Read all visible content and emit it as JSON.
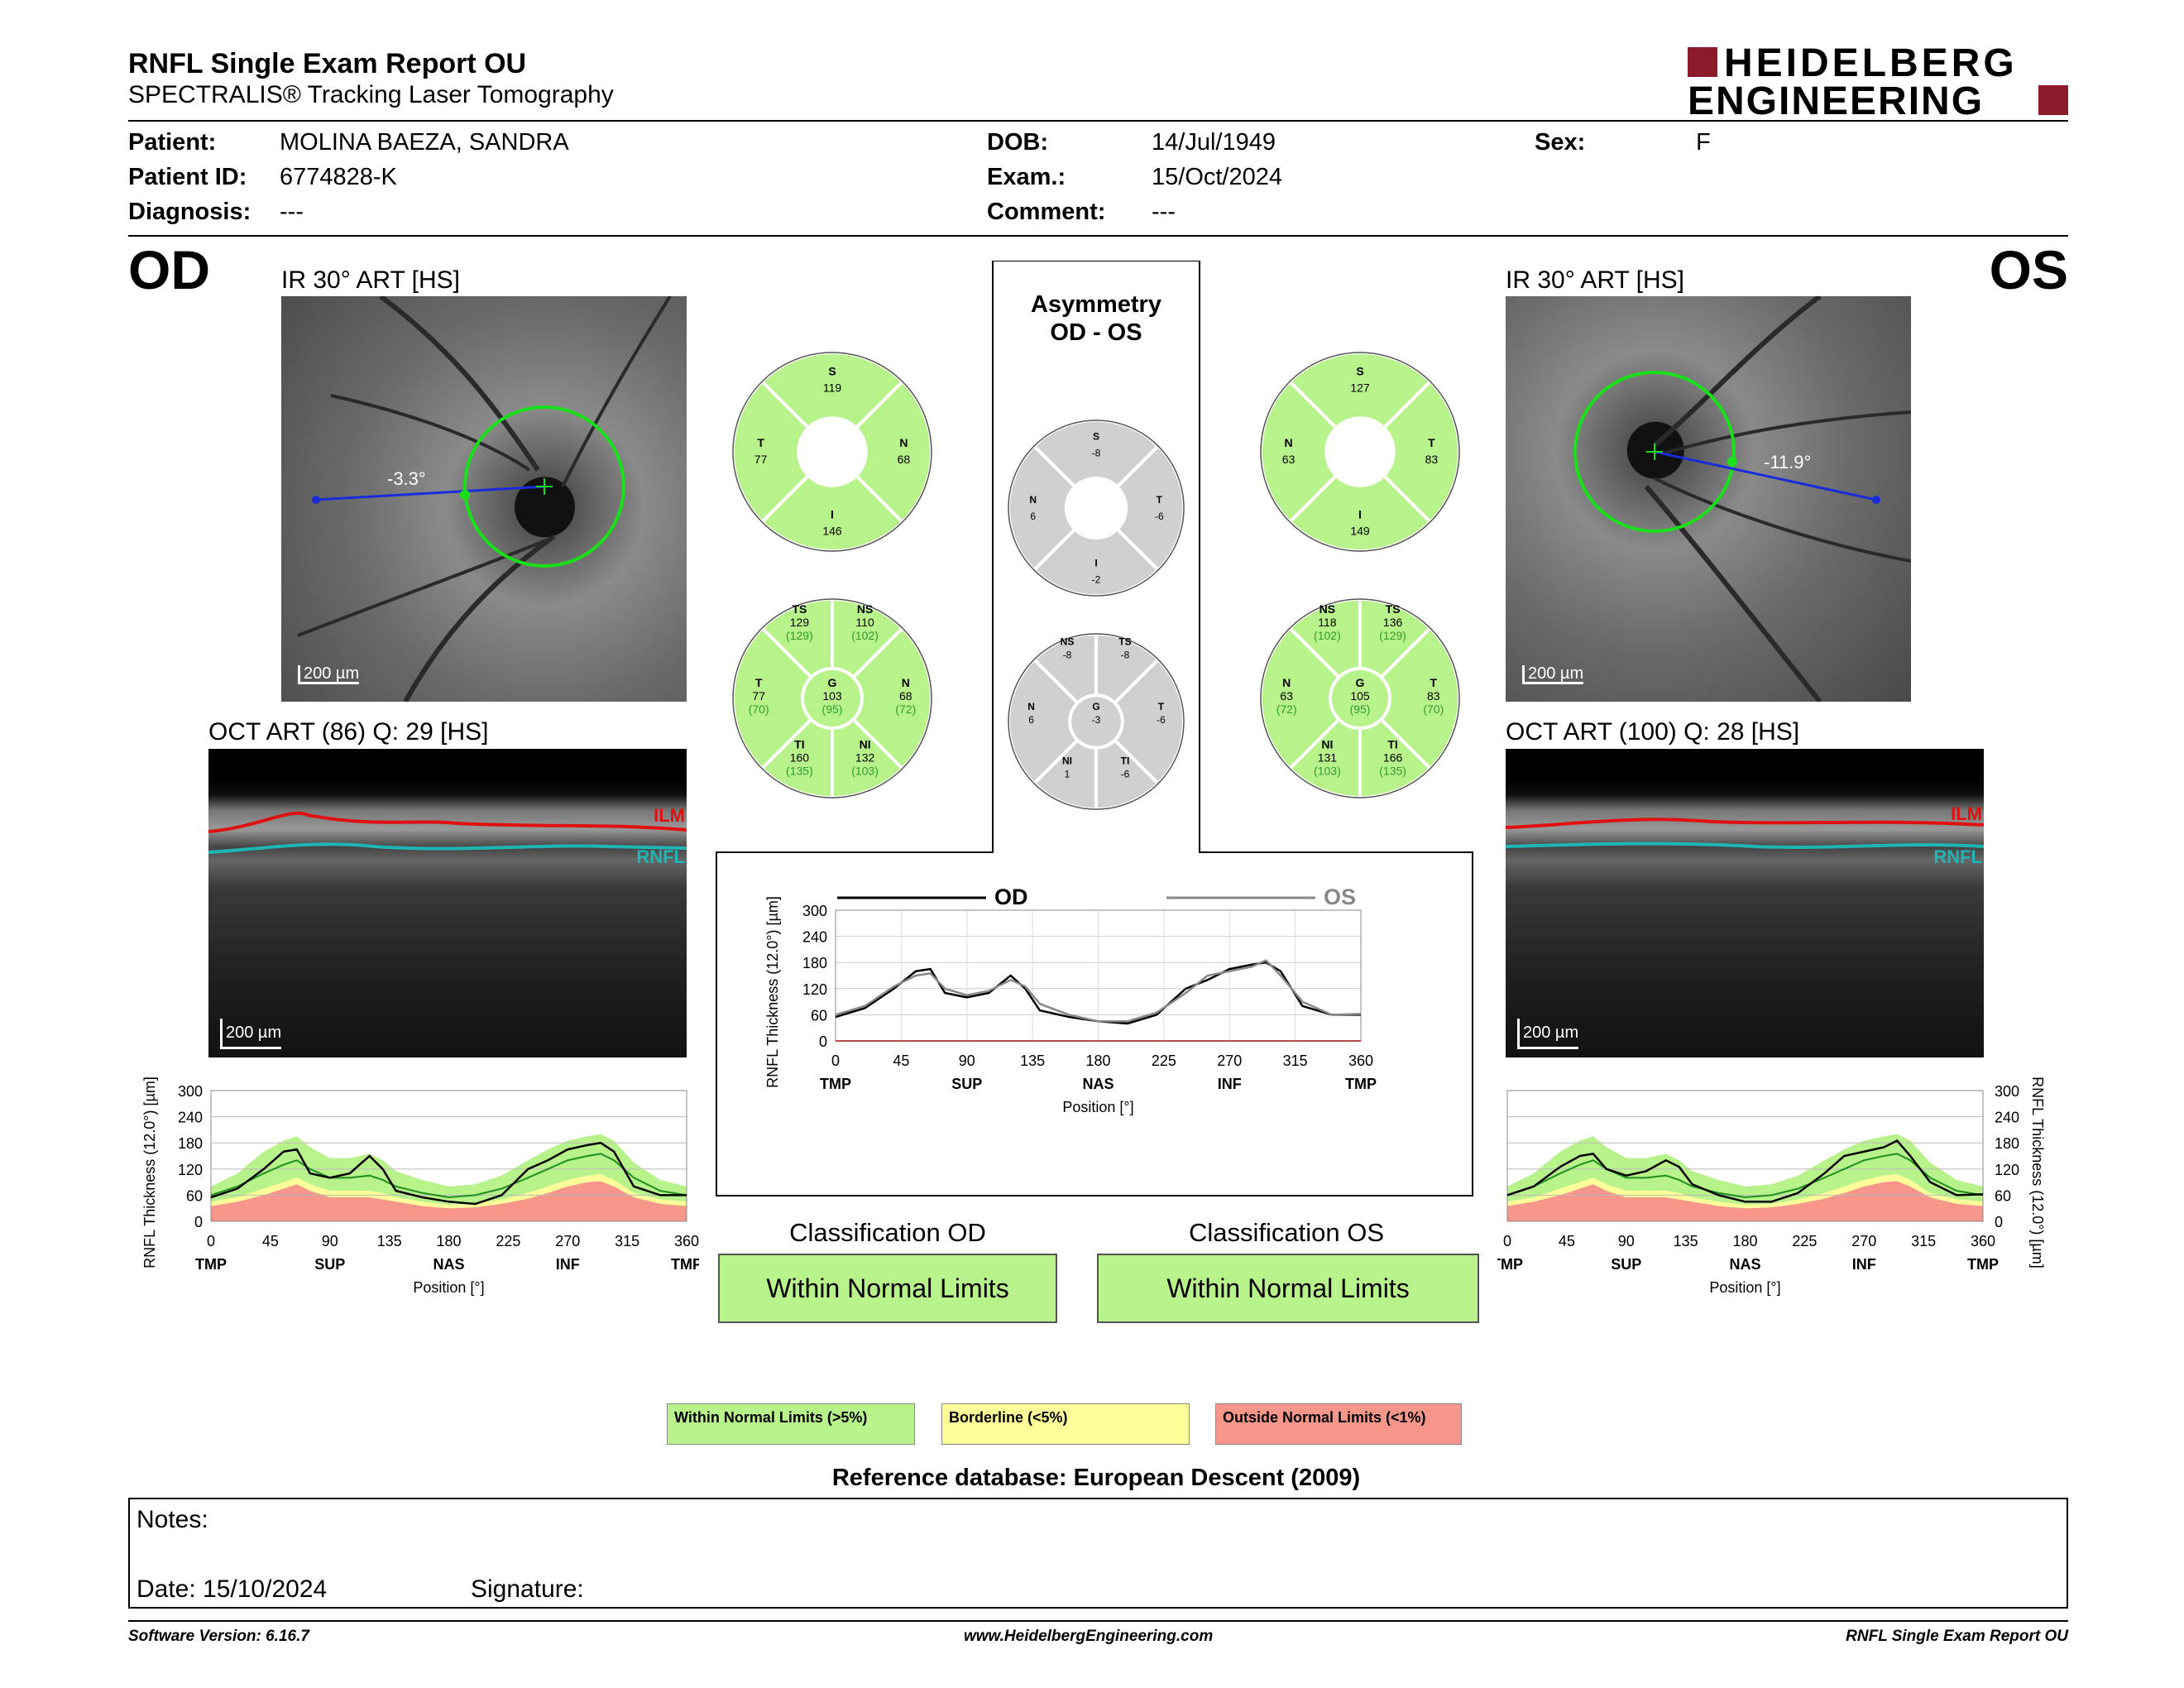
{
  "header": {
    "title": "RNFL Single Exam Report OU",
    "subtitle": "SPECTRALIS® Tracking Laser Tomography",
    "logo_line1": "HEIDELBERG",
    "logo_line2": "ENGINEERING",
    "brand_color": "#8b1a2b"
  },
  "patient": {
    "name_label": "Patient:",
    "name": "MOLINA BAEZA, SANDRA",
    "id_label": "Patient ID:",
    "id": "6774828-K",
    "diagnosis_label": "Diagnosis:",
    "diagnosis": "---",
    "dob_label": "DOB:",
    "dob": "14/Jul/1949",
    "exam_label": "Exam.:",
    "exam": "15/Oct/2024",
    "comment_label": "Comment:",
    "comment": "---",
    "sex_label": "Sex:",
    "sex": "F"
  },
  "od": {
    "eye": "OD",
    "ir_title": "IR 30° ART [HS]",
    "angle": "-3.3°",
    "scale": "200 µm",
    "oct_title": "OCT ART (86) Q: 29 [HS]",
    "ilm": "ILM",
    "rnfl": "RNFL",
    "oct_scale": "200 µm",
    "sectors4": {
      "S": "119",
      "T": "77",
      "N": "68",
      "I": "146"
    },
    "sectors6": {
      "TS": "129",
      "TS_ref": "(129)",
      "NS": "110",
      "NS_ref": "(102)",
      "T": "77",
      "T_ref": "(70)",
      "G": "103",
      "G_ref": "(95)",
      "N": "68",
      "N_ref": "(72)",
      "TI": "160",
      "TI_ref": "(135)",
      "NI": "132",
      "NI_ref": "(103)"
    },
    "classification_title": "Classification OD",
    "classification": "Within Normal Limits"
  },
  "os": {
    "eye": "OS",
    "ir_title": "IR 30° ART [HS]",
    "angle": "-11.9°",
    "scale": "200 µm",
    "oct_title": "OCT ART (100) Q: 28 [HS]",
    "ilm": "ILM",
    "rnfl": "RNFL",
    "oct_scale": "200 µm",
    "sectors4": {
      "S": "127",
      "N": "63",
      "T": "83",
      "I": "149"
    },
    "sectors6": {
      "NS": "118",
      "NS_ref": "(102)",
      "TS": "136",
      "TS_ref": "(129)",
      "N": "63",
      "N_ref": "(72)",
      "G": "105",
      "G_ref": "(95)",
      "T": "83",
      "T_ref": "(70)",
      "NI": "131",
      "NI_ref": "(103)",
      "TI": "166",
      "TI_ref": "(135)"
    },
    "classification_title": "Classification OS",
    "classification": "Within Normal Limits"
  },
  "asymmetry": {
    "title1": "Asymmetry",
    "title2": "OD - OS",
    "sectors4": {
      "S": "-8",
      "N": "6",
      "T": "-6",
      "I": "-2"
    },
    "sectors6": {
      "NS": "-8",
      "TS": "-8",
      "N": "6",
      "G": "-3",
      "T": "-6",
      "NI": "1",
      "TI": "-6"
    }
  },
  "chart_labels": {
    "ylabel": "RNFL Thickness (12.0°) [µm]",
    "xlabel": "Position [°]",
    "yticks": [
      "300",
      "240",
      "180",
      "120",
      "60",
      "0"
    ],
    "yticks_center": [
      "300",
      "240",
      "180",
      "120",
      "60",
      "0"
    ],
    "xticks": [
      "0",
      "45",
      "90",
      "135",
      "180",
      "225",
      "270",
      "315",
      "360"
    ],
    "regions": [
      "TMP",
      "SUP",
      "NAS",
      "INF",
      "TMP"
    ],
    "legend_od": "OD",
    "legend_os": "OS"
  },
  "chart_data": [
    {
      "type": "line",
      "title": "",
      "xlabel": "Position [°]",
      "ylabel": "RNFL Thickness (12.0°) [µm]",
      "xlim": [
        0,
        360
      ],
      "ylim": [
        0,
        300
      ],
      "x": [
        0,
        20,
        40,
        55,
        65,
        75,
        90,
        105,
        120,
        130,
        140,
        160,
        180,
        200,
        220,
        240,
        255,
        270,
        285,
        295,
        305,
        320,
        340,
        360
      ],
      "series": [
        {
          "name": "OD",
          "values": [
            55,
            75,
            120,
            160,
            165,
            110,
            100,
            110,
            150,
            120,
            70,
            55,
            45,
            40,
            60,
            120,
            140,
            165,
            175,
            180,
            160,
            80,
            60,
            60
          ]
        },
        {
          "name": "OS",
          "values": [
            60,
            80,
            125,
            150,
            155,
            120,
            105,
            115,
            140,
            125,
            85,
            60,
            45,
            45,
            65,
            110,
            150,
            160,
            170,
            185,
            150,
            90,
            60,
            62
          ]
        }
      ]
    },
    {
      "type": "area",
      "title": "",
      "xlabel": "Position [°]",
      "ylabel": "RNFL Thickness (12.0°) [µm]",
      "xlim": [
        0,
        360
      ],
      "ylim": [
        0,
        300
      ],
      "x": [
        0,
        20,
        40,
        55,
        65,
        75,
        90,
        105,
        120,
        130,
        140,
        160,
        180,
        200,
        220,
        240,
        255,
        270,
        285,
        295,
        305,
        320,
        340,
        360
      ],
      "series": [
        {
          "name": "OD measured",
          "values": [
            55,
            75,
            120,
            160,
            165,
            110,
            100,
            110,
            150,
            120,
            70,
            55,
            45,
            40,
            60,
            120,
            140,
            165,
            175,
            180,
            160,
            80,
            60,
            60
          ]
        },
        {
          "name": "normal mean",
          "values": [
            60,
            80,
            110,
            130,
            140,
            120,
            100,
            100,
            105,
            95,
            80,
            65,
            55,
            60,
            75,
            100,
            120,
            140,
            150,
            155,
            140,
            100,
            70,
            60
          ]
        },
        {
          "name": "upper limit",
          "values": [
            80,
            110,
            160,
            185,
            195,
            170,
            145,
            145,
            155,
            140,
            115,
            95,
            80,
            85,
            105,
            140,
            165,
            185,
            195,
            200,
            185,
            135,
            95,
            80
          ]
        },
        {
          "name": "borderline limit",
          "values": [
            45,
            55,
            75,
            90,
            100,
            85,
            70,
            70,
            70,
            65,
            55,
            45,
            38,
            40,
            50,
            65,
            80,
            95,
            105,
            108,
            95,
            65,
            50,
            45
          ]
        },
        {
          "name": "outside limit",
          "values": [
            35,
            45,
            60,
            75,
            85,
            70,
            55,
            55,
            55,
            50,
            45,
            35,
            30,
            32,
            40,
            52,
            65,
            80,
            90,
            92,
            80,
            55,
            40,
            35
          ]
        }
      ]
    },
    {
      "type": "area",
      "title": "",
      "xlabel": "Position [°]",
      "ylabel": "RNFL Thickness (12.0°) [µm]",
      "xlim": [
        0,
        360
      ],
      "ylim": [
        0,
        300
      ],
      "x": [
        0,
        20,
        40,
        55,
        65,
        75,
        90,
        105,
        120,
        130,
        140,
        160,
        180,
        200,
        220,
        240,
        255,
        270,
        285,
        295,
        305,
        320,
        340,
        360
      ],
      "series": [
        {
          "name": "OS measured",
          "values": [
            60,
            80,
            125,
            150,
            155,
            120,
            105,
            115,
            140,
            125,
            85,
            60,
            45,
            45,
            65,
            110,
            150,
            160,
            170,
            185,
            150,
            90,
            60,
            62
          ]
        },
        {
          "name": "normal mean",
          "values": [
            60,
            80,
            110,
            130,
            140,
            120,
            100,
            100,
            105,
            95,
            80,
            65,
            55,
            60,
            75,
            100,
            120,
            140,
            150,
            155,
            140,
            100,
            70,
            60
          ]
        },
        {
          "name": "upper limit",
          "values": [
            80,
            110,
            160,
            185,
            195,
            170,
            145,
            145,
            155,
            140,
            115,
            95,
            80,
            85,
            105,
            140,
            165,
            185,
            195,
            200,
            185,
            135,
            95,
            80
          ]
        },
        {
          "name": "borderline limit",
          "values": [
            45,
            55,
            75,
            90,
            100,
            85,
            70,
            70,
            70,
            65,
            55,
            45,
            38,
            40,
            50,
            65,
            80,
            95,
            105,
            108,
            95,
            65,
            50,
            45
          ]
        },
        {
          "name": "outside limit",
          "values": [
            35,
            45,
            60,
            75,
            85,
            70,
            55,
            55,
            55,
            50,
            45,
            35,
            30,
            32,
            40,
            52,
            65,
            80,
            90,
            92,
            80,
            55,
            40,
            35
          ]
        }
      ]
    }
  ],
  "legend": {
    "wnl": "Within Normal Limits (>5%)",
    "bl": "Borderline (<5%)",
    "onl": "Outside Normal Limits (<1%)",
    "wnl_color": "#b8f28a",
    "bl_color": "#ffff99",
    "onl_color": "#f7968a"
  },
  "reference": "Reference database: European Descent (2009)",
  "notes": {
    "label": "Notes:",
    "date_label": "Date: 15/10/2024",
    "signature_label": "Signature:"
  },
  "footer": {
    "version": "Software Version: 6.16.7",
    "url": "www.HeidelbergEngineering.com",
    "report": "RNFL Single Exam Report OU"
  }
}
